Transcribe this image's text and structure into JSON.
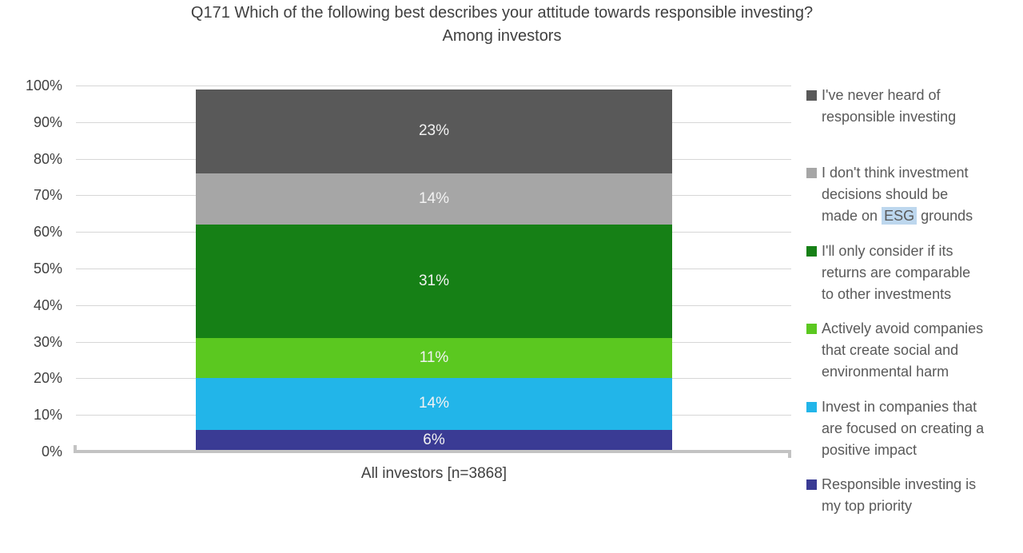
{
  "title": {
    "line1": "Q171 Which of the following best describes your attitude towards responsible investing?",
    "line2": "Among investors"
  },
  "x_axis": {
    "category_label": "All investors [n=3868]"
  },
  "y_axis": {
    "ticks": [
      {
        "label": "100%",
        "value": 100
      },
      {
        "label": "90%",
        "value": 90
      },
      {
        "label": "80%",
        "value": 80
      },
      {
        "label": "70%",
        "value": 70
      },
      {
        "label": "60%",
        "value": 60
      },
      {
        "label": "50%",
        "value": 50
      },
      {
        "label": "40%",
        "value": 40
      },
      {
        "label": "30%",
        "value": 30
      },
      {
        "label": "20%",
        "value": 20
      },
      {
        "label": "10%",
        "value": 10
      },
      {
        "label": "0%",
        "value": 0
      }
    ]
  },
  "chart_data": {
    "type": "bar",
    "stacked": true,
    "orientation": "vertical",
    "title": "Q171 Which of the following best describes your attitude towards responsible investing? Among investors",
    "categories": [
      "All investors [n=3868]"
    ],
    "ylim": [
      0,
      100
    ],
    "grid": true,
    "legend_position": "right",
    "series_bottom_to_top": [
      {
        "name": "Responsible investing is my top priority",
        "value": 6,
        "data_label": "6%",
        "color": "#3A3B94"
      },
      {
        "name": "Invest in companies that are focused on creating a positive impact",
        "value": 14,
        "data_label": "14%",
        "color": "#22B5E9"
      },
      {
        "name": "Actively avoid companies that create social and environmental harm",
        "value": 11,
        "data_label": "11%",
        "color": "#5BC820"
      },
      {
        "name": "I'll only consider if its returns are comparable to other investments",
        "value": 31,
        "data_label": "31%",
        "color": "#168016"
      },
      {
        "name": "I don't think investment decisions should be made on ESG grounds",
        "value": 14,
        "data_label": "14%",
        "color": "#A6A6A6"
      },
      {
        "name": "I've never heard of responsible investing",
        "value": 23,
        "data_label": "23%",
        "color": "#595959"
      }
    ]
  },
  "legend": {
    "esg_highlight_color": "#BDD7EE",
    "items": [
      {
        "color": "#595959",
        "lines": [
          [
            {
              "text": "I've never heard of"
            }
          ],
          [
            {
              "text": "responsible investing"
            }
          ]
        ]
      },
      {
        "color": "#A6A6A6",
        "lines": [
          [
            {
              "text": "I don't think investment"
            }
          ],
          [
            {
              "text": "decisions should be"
            }
          ],
          [
            {
              "text": "made on "
            },
            {
              "text": "ESG",
              "highlight": true
            },
            {
              "text": " grounds"
            }
          ]
        ]
      },
      {
        "color": "#168016",
        "lines": [
          [
            {
              "text": "I'll only consider if its"
            }
          ],
          [
            {
              "text": "returns are comparable"
            }
          ],
          [
            {
              "text": "to other investments"
            }
          ]
        ]
      },
      {
        "color": "#5BC820",
        "lines": [
          [
            {
              "text": "Actively avoid companies"
            }
          ],
          [
            {
              "text": "that create social and"
            }
          ],
          [
            {
              "text": "environmental harm"
            }
          ]
        ]
      },
      {
        "color": "#22B5E9",
        "lines": [
          [
            {
              "text": "Invest in companies that"
            }
          ],
          [
            {
              "text": "are focused on creating a"
            }
          ],
          [
            {
              "text": "positive impact"
            }
          ]
        ]
      },
      {
        "color": "#3A3B94",
        "lines": [
          [
            {
              "text": "Responsible investing is"
            }
          ],
          [
            {
              "text": "my top priority"
            }
          ]
        ]
      }
    ]
  },
  "colors": {
    "gridline": "#d6d6d6",
    "axis_line": "#c3c3c3",
    "title_text": "#404040",
    "legend_text": "#595959",
    "bar_label_text": "#f2f2f2"
  }
}
